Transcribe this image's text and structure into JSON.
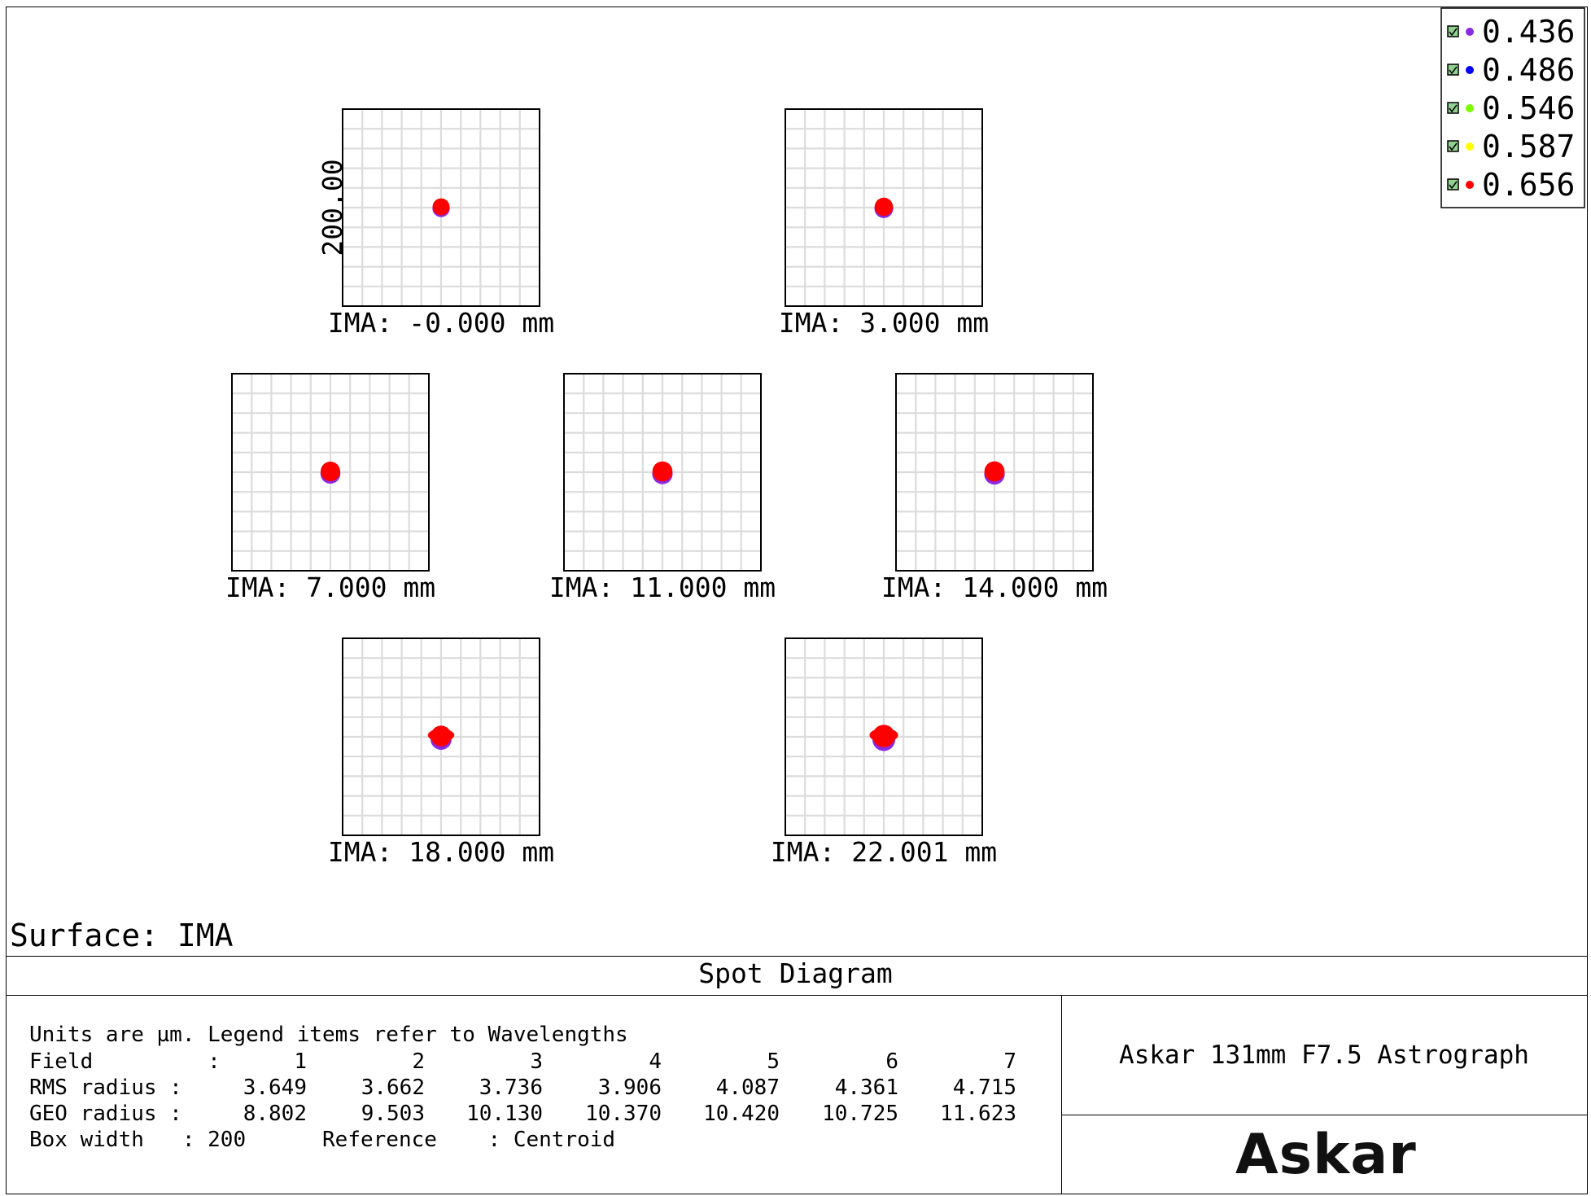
{
  "surface_label": "Surface: IMA",
  "plot_title": "Spot Diagram",
  "lens_title": "Askar 131mm F7.5 Astrograph",
  "logo_text": "Askar",
  "info": {
    "units_line": "Units are µm. Legend items refer to Wavelengths",
    "field_label": "Field         :",
    "rms_label": "RMS radius :",
    "geo_label": "GEO radius :",
    "box_line": "Box width   : 200      Reference    : Centroid",
    "fields": [
      "1",
      "2",
      "3",
      "4",
      "5",
      "6",
      "7"
    ],
    "rms": [
      "3.649",
      "3.662",
      "3.736",
      "3.906",
      "4.087",
      "4.361",
      "4.715"
    ],
    "geo": [
      "8.802",
      "9.503",
      "10.130",
      "10.370",
      "10.420",
      "10.725",
      "11.623"
    ]
  },
  "chart_data": {
    "type": "scatter",
    "title": "Spot Diagram",
    "units": "µm",
    "scale_bar_label": "200.00",
    "box_width": 200,
    "reference": "Centroid",
    "legend_placement": "top-right",
    "legend": [
      {
        "name": "0.436",
        "color": "#8a2be2"
      },
      {
        "name": "0.486",
        "color": "#0000ff"
      },
      {
        "name": "0.546",
        "color": "#7cfc00"
      },
      {
        "name": "0.587",
        "color": "#ffff00"
      },
      {
        "name": "0.656",
        "color": "#ff0000"
      }
    ],
    "fields": [
      {
        "label": "IMA: -0.000 mm",
        "rms_um": 3.649,
        "geo_um": 8.802
      },
      {
        "label": "IMA: 3.000 mm",
        "rms_um": 3.662,
        "geo_um": 9.503
      },
      {
        "label": "IMA: 7.000 mm",
        "rms_um": 3.736,
        "geo_um": 10.13
      },
      {
        "label": "IMA: 11.000 mm",
        "rms_um": 3.906,
        "geo_um": 10.37
      },
      {
        "label": "IMA: 14.000 mm",
        "rms_um": 4.087,
        "geo_um": 10.42
      },
      {
        "label": "IMA: 18.000 mm",
        "rms_um": 4.361,
        "geo_um": 10.725
      },
      {
        "label": "IMA: 22.001 mm",
        "rms_um": 4.715,
        "geo_um": 11.623
      }
    ]
  }
}
